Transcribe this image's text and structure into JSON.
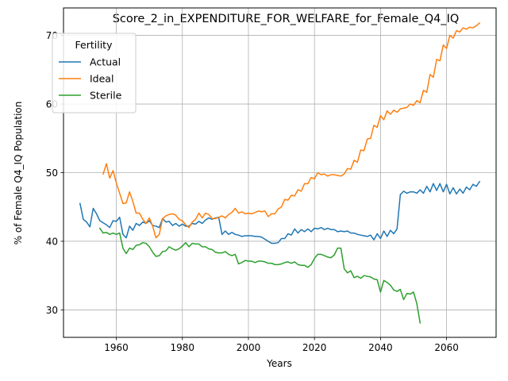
{
  "chart_data": {
    "type": "line",
    "title": "Score_2_in_EXPENDITURE_FOR_WELFARE_for_Female_Q4_IQ",
    "xlabel": "Years",
    "ylabel": "% of Female Q4_IQ Population",
    "xlim": [
      1944,
      2075
    ],
    "ylim": [
      26,
      74
    ],
    "xticks": [
      1960,
      1980,
      2000,
      2020,
      2040,
      2060
    ],
    "yticks": [
      30,
      40,
      50,
      60,
      70
    ],
    "grid": true,
    "legend": {
      "title": "Fertility",
      "position": "top-left"
    },
    "series": [
      {
        "name": "Actual",
        "color": "#1f77b4",
        "x": [
          1949,
          1950,
          1951,
          1952,
          1953,
          1954,
          1955,
          1956,
          1957,
          1958,
          1959,
          1960,
          1961,
          1962,
          1963,
          1964,
          1965,
          1966,
          1967,
          1968,
          1969,
          1970,
          1971,
          1972,
          1973,
          1974,
          1975,
          1976,
          1977,
          1978,
          1979,
          1980,
          1981,
          1982,
          1983,
          1984,
          1985,
          1986,
          1987,
          1988,
          1989,
          1990,
          1991,
          1992,
          1993,
          1994,
          1995,
          1996,
          1997,
          1998,
          1999,
          2000,
          2001,
          2002,
          2003,
          2004,
          2005,
          2006,
          2007,
          2008,
          2009,
          2010,
          2011,
          2012,
          2013,
          2014,
          2015,
          2016,
          2017,
          2018,
          2019,
          2020,
          2021,
          2022,
          2023,
          2024,
          2025,
          2026,
          2027,
          2028,
          2029,
          2030,
          2031,
          2032,
          2033,
          2034,
          2035,
          2036,
          2037,
          2038,
          2039,
          2040,
          2041,
          2042,
          2043,
          2044,
          2045,
          2046,
          2047,
          2048,
          2049,
          2050,
          2051,
          2052,
          2053,
          2054,
          2055,
          2056,
          2057,
          2058,
          2059,
          2060,
          2061,
          2062,
          2063,
          2064,
          2065,
          2066,
          2067,
          2068,
          2069,
          2070
        ],
        "values": [
          45.5,
          43.2,
          42.8,
          42.1,
          44.8,
          44.0,
          43.0,
          42.7,
          42.4,
          42.0,
          43.0,
          42.9,
          43.5,
          41.0,
          40.5,
          42.2,
          41.6,
          42.6,
          42.3,
          42.8,
          42.6,
          43.0,
          42.3,
          42.2,
          42.0,
          43.3,
          42.8,
          42.9,
          42.3,
          42.6,
          42.2,
          42.5,
          42.2,
          42.2,
          42.6,
          42.5,
          42.9,
          42.6,
          43.1,
          43.4,
          43.2,
          43.4,
          43.5,
          41.0,
          41.5,
          41.0,
          41.3,
          41.0,
          40.9,
          40.7,
          40.8,
          40.8,
          40.8,
          40.7,
          40.7,
          40.6,
          40.3,
          40.0,
          39.7,
          39.7,
          39.8,
          40.4,
          40.4,
          41.1,
          40.9,
          41.8,
          41.2,
          41.7,
          41.4,
          41.8,
          41.4,
          41.9,
          41.8,
          42.0,
          41.7,
          41.9,
          41.7,
          41.7,
          41.4,
          41.5,
          41.4,
          41.5,
          41.2,
          41.2,
          41.0,
          40.9,
          40.8,
          40.7,
          40.9,
          40.2,
          41.1,
          40.4,
          41.5,
          40.7,
          41.6,
          41.1,
          41.8,
          46.8,
          47.3,
          47.0,
          47.2,
          47.2,
          47.0,
          47.5,
          47.0,
          48.0,
          47.2,
          48.4,
          47.4,
          48.4,
          47.2,
          48.3,
          46.9,
          47.8,
          46.9,
          47.6,
          47.0,
          47.9,
          47.5,
          48.3,
          48.0,
          48.7
        ]
      },
      {
        "name": "Ideal",
        "color": "#ff7f0e",
        "x": [
          1956,
          1957,
          1958,
          1959,
          1960,
          1961,
          1962,
          1963,
          1964,
          1965,
          1966,
          1967,
          1968,
          1969,
          1970,
          1971,
          1972,
          1973,
          1974,
          1975,
          1976,
          1977,
          1978,
          1979,
          1980,
          1981,
          1982,
          1983,
          1984,
          1985,
          1986,
          1987,
          1988,
          1989,
          1990,
          1991,
          1992,
          1993,
          1994,
          1995,
          1996,
          1997,
          1998,
          1999,
          2000,
          2001,
          2002,
          2003,
          2004,
          2005,
          2006,
          2007,
          2008,
          2009,
          2010,
          2011,
          2012,
          2013,
          2014,
          2015,
          2016,
          2017,
          2018,
          2019,
          2020,
          2021,
          2022,
          2023,
          2024,
          2025,
          2026,
          2027,
          2028,
          2029,
          2030,
          2031,
          2032,
          2033,
          2034,
          2035,
          2036,
          2037,
          2038,
          2039,
          2040,
          2041,
          2042,
          2043,
          2044,
          2045,
          2046,
          2047,
          2048,
          2049,
          2050,
          2051,
          2052,
          2053,
          2054,
          2055,
          2056,
          2057,
          2058,
          2059,
          2060,
          2061,
          2062,
          2063,
          2064,
          2065,
          2066,
          2067,
          2068,
          2069,
          2070
        ],
        "values": [
          49.8,
          51.3,
          49.2,
          50.3,
          48.5,
          47.0,
          45.5,
          45.6,
          47.2,
          45.8,
          44.1,
          44.1,
          43.2,
          42.6,
          43.4,
          42.2,
          40.5,
          41.0,
          43.3,
          43.7,
          43.9,
          44.0,
          43.8,
          43.2,
          43.0,
          42.4,
          42.0,
          42.8,
          43.2,
          44.1,
          43.4,
          44.1,
          43.9,
          43.3,
          43.3,
          43.5,
          43.7,
          43.4,
          43.9,
          44.2,
          44.8,
          44.1,
          44.3,
          44.0,
          44.1,
          44.0,
          44.2,
          44.4,
          44.3,
          44.4,
          43.6,
          44.0,
          44.0,
          44.7,
          45.0,
          46.1,
          46.0,
          46.7,
          46.6,
          47.5,
          47.3,
          48.4,
          48.4,
          49.3,
          49.1,
          50.0,
          49.7,
          49.8,
          49.5,
          49.7,
          49.7,
          49.6,
          49.5,
          49.8,
          50.6,
          50.5,
          51.8,
          51.5,
          53.3,
          53.2,
          54.9,
          55.0,
          56.9,
          56.6,
          58.3,
          57.7,
          59.0,
          58.5,
          59.1,
          58.8,
          59.3,
          59.4,
          59.5,
          60.0,
          59.8,
          60.5,
          60.2,
          62.0,
          61.7,
          64.3,
          63.9,
          66.5,
          66.3,
          68.6,
          68.1,
          70.0,
          69.6,
          70.7,
          70.5,
          71.1,
          70.9,
          71.2,
          71.1,
          71.4,
          71.8
        ]
      },
      {
        "name": "Sterile",
        "color": "#2ca02c",
        "x": [
          1955,
          1956,
          1957,
          1958,
          1959,
          1960,
          1961,
          1962,
          1963,
          1964,
          1965,
          1966,
          1967,
          1968,
          1969,
          1970,
          1971,
          1972,
          1973,
          1974,
          1975,
          1976,
          1977,
          1978,
          1979,
          1980,
          1981,
          1982,
          1983,
          1984,
          1985,
          1986,
          1987,
          1988,
          1989,
          1990,
          1991,
          1992,
          1993,
          1994,
          1995,
          1996,
          1997,
          1998,
          1999,
          2000,
          2001,
          2002,
          2003,
          2004,
          2005,
          2006,
          2007,
          2008,
          2009,
          2010,
          2011,
          2012,
          2013,
          2014,
          2015,
          2016,
          2017,
          2018,
          2019,
          2020,
          2021,
          2022,
          2023,
          2024,
          2025,
          2026,
          2027,
          2028,
          2029,
          2030,
          2031,
          2032,
          2033,
          2034,
          2035,
          2036,
          2037,
          2038,
          2039,
          2040,
          2041,
          2042,
          2043,
          2044,
          2045,
          2046,
          2047,
          2048,
          2049,
          2050,
          2051,
          2052
        ],
        "values": [
          41.9,
          41.2,
          41.3,
          41.0,
          41.2,
          41.0,
          41.2,
          39.0,
          38.2,
          39.0,
          38.8,
          39.4,
          39.5,
          39.8,
          39.7,
          39.2,
          38.4,
          37.8,
          37.9,
          38.5,
          38.6,
          39.2,
          38.9,
          38.7,
          38.9,
          39.3,
          39.8,
          39.2,
          39.7,
          39.6,
          39.6,
          39.2,
          39.2,
          38.9,
          38.8,
          38.4,
          38.3,
          38.3,
          38.5,
          38.1,
          37.9,
          38.1,
          36.7,
          36.9,
          37.2,
          37.1,
          37.1,
          36.9,
          37.1,
          37.1,
          37.0,
          36.8,
          36.8,
          36.6,
          36.6,
          36.7,
          36.9,
          37.0,
          36.8,
          37.0,
          36.6,
          36.5,
          36.5,
          36.2,
          36.6,
          37.5,
          38.1,
          38.1,
          37.9,
          37.7,
          37.6,
          38.0,
          39.0,
          39.0,
          36.0,
          35.4,
          35.7,
          34.7,
          34.9,
          34.6,
          35.0,
          34.9,
          34.8,
          34.5,
          34.4,
          32.6,
          34.3,
          34.0,
          33.6,
          32.9,
          32.7,
          33.0,
          31.5,
          32.4,
          32.3,
          32.6,
          30.9,
          28.1
        ]
      }
    ]
  }
}
